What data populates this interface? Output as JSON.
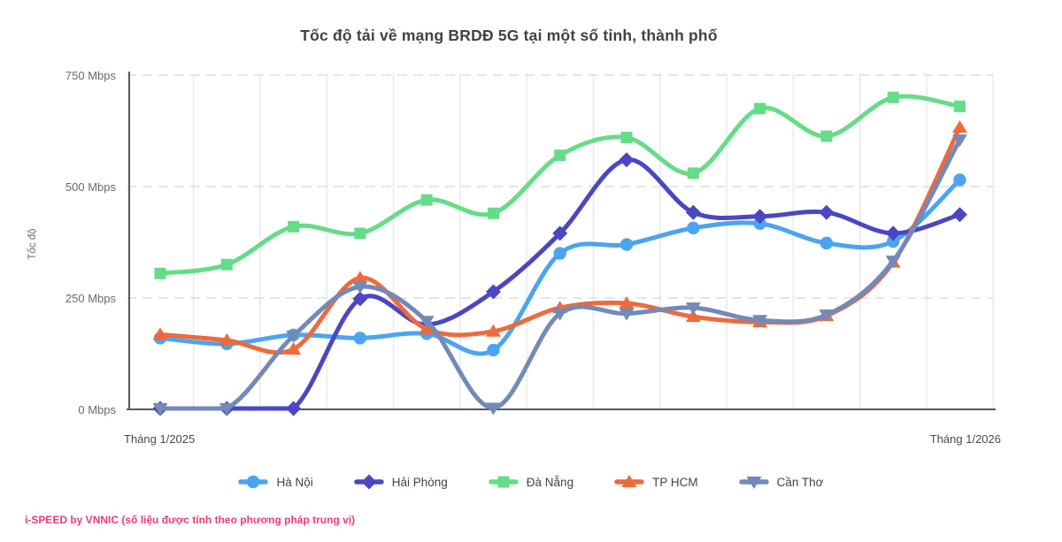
{
  "title": "Tốc độ tải về mạng BRDĐ 5G tại một số tỉnh, thành phố",
  "footer": "i-SPEED by VNNIC (số liệu được tính theo phương pháp trung vị)",
  "y_axis": {
    "label": "Tốc độ",
    "ticks": [
      {
        "value": 0,
        "label": "0 Mbps"
      },
      {
        "value": 250,
        "label": "250 Mbps"
      },
      {
        "value": 500,
        "label": "500 Mbps"
      },
      {
        "value": 750,
        "label": "750 Mbps"
      }
    ]
  },
  "x_axis": {
    "left_label": "Tháng 1/2025",
    "right_label": "Tháng 1/2026"
  },
  "chart_data": {
    "type": "line",
    "title": "Tốc độ tải về mạng BRDĐ 5G tại một số tỉnh, thành phố",
    "xlabel": "",
    "ylabel": "Tốc độ",
    "ylim": [
      0,
      750
    ],
    "y_tick_values": [
      0,
      250,
      500,
      750
    ],
    "x_range_labels": [
      "Tháng 1/2025",
      "Tháng 1/2026"
    ],
    "n_points": 13,
    "grid": true,
    "legend_position": "bottom",
    "unit": "Mbps",
    "series": [
      {
        "name": "Hà Nội",
        "slug": "ha-noi",
        "color": "#4aa5f0",
        "marker": "circle",
        "values": [
          160,
          147,
          167,
          160,
          170,
          133,
          350,
          370,
          407,
          417,
          373,
          377,
          515
        ]
      },
      {
        "name": "Hải Phòng",
        "slug": "hai-phong",
        "color": "#4b46c3",
        "marker": "diamond",
        "values": [
          2,
          2,
          2,
          248,
          190,
          264,
          395,
          560,
          442,
          433,
          442,
          395,
          437
        ]
      },
      {
        "name": "Đà Nẵng",
        "slug": "da-nang",
        "color": "#65dc87",
        "marker": "square",
        "values": [
          305,
          325,
          410,
          395,
          470,
          440,
          570,
          610,
          530,
          675,
          613,
          700,
          680
        ]
      },
      {
        "name": "TP HCM",
        "slug": "tp-hcm",
        "color": "#ee6a3d",
        "marker": "triangle-up",
        "values": [
          168,
          155,
          135,
          295,
          180,
          175,
          228,
          238,
          208,
          196,
          210,
          330,
          633
        ]
      },
      {
        "name": "Cần Thơ",
        "slug": "can-tho",
        "color": "#7389b8",
        "marker": "triangle-down",
        "values": [
          2,
          2,
          165,
          275,
          198,
          3,
          215,
          215,
          228,
          200,
          212,
          333,
          605
        ]
      }
    ]
  },
  "colors": {
    "title_text": "#3d424b",
    "axis_line": "#55585e",
    "grid_line": "#e8e8e8",
    "tick_text": "#666a70",
    "x_label_text": "#46494f",
    "footer_text": "#ee3d76"
  }
}
